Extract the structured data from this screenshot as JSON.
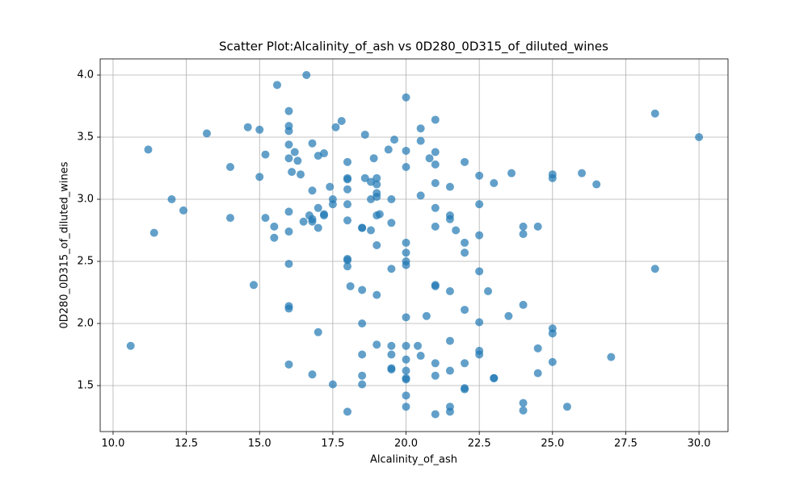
{
  "chart_data": {
    "type": "scatter",
    "title": "Scatter Plot:Alcalinity_of_ash vs 0D280_0D315_of_diluted_wines",
    "xlabel": "Alcalinity_of_ash",
    "ylabel": "0D280_0D315_of_diluted_wines",
    "color": "#1f77b4",
    "grid": true,
    "xlim": [
      9.56,
      30.99
    ],
    "ylim": [
      1.13,
      4.13
    ],
    "xticks": [
      {
        "value": 10,
        "label": "10.0"
      },
      {
        "value": 12.5,
        "label": "12.5"
      },
      {
        "value": 15,
        "label": "15.0"
      },
      {
        "value": 17.5,
        "label": "17.5"
      },
      {
        "value": 20,
        "label": "20.0"
      },
      {
        "value": 22.5,
        "label": "22.5"
      },
      {
        "value": 25,
        "label": "25.0"
      },
      {
        "value": 27.5,
        "label": "27.5"
      },
      {
        "value": 30,
        "label": "30.0"
      }
    ],
    "yticks": [
      {
        "value": 1.5,
        "label": "1.5"
      },
      {
        "value": 2,
        "label": "2.0"
      },
      {
        "value": 2.5,
        "label": "2.5"
      },
      {
        "value": 3,
        "label": "3.0"
      },
      {
        "value": 3.5,
        "label": "3.5"
      },
      {
        "value": 4,
        "label": "4.0"
      }
    ],
    "x": [
      15.6,
      16.6,
      20,
      16,
      28.5,
      21,
      17.8,
      16,
      14.6,
      17.6,
      20.5,
      15,
      16,
      13.2,
      18.6,
      30,
      19.6,
      20.5,
      16,
      16.8,
      11.2,
      19.4,
      16.2,
      20,
      21,
      17.2,
      15.2,
      17,
      20.8,
      16,
      18.9,
      16.3,
      18,
      22,
      21,
      14,
      20,
      16.1,
      23.6,
      26,
      16.4,
      25,
      15,
      22.5,
      18.6,
      18,
      19,
      25,
      18,
      18.8,
      21,
      23,
      19,
      26.5,
      17.4,
      21.5,
      18,
      16.8,
      19,
      20.5,
      19,
      12,
      17.5,
      18.8,
      19.5,
      18,
      17.5,
      22.5,
      17,
      21,
      12.4,
      16,
      17.2,
      19.1,
      17.2,
      16.7,
      19,
      21.5,
      14,
      15.2,
      21.5,
      16.8,
      18,
      16.5,
      16.8,
      19.5,
      15.5,
      17,
      18.5,
      18.5,
      21,
      24,
      24.5,
      16,
      11.4,
      18.8,
      21.7,
      22.5,
      24,
      15.5,
      20,
      22,
      19,
      20,
      22,
      18,
      18,
      20,
      20,
      16,
      18,
      19.5,
      28.5,
      22.5,
      21,
      21,
      14.8,
      18.1,
      18.5,
      21.5,
      22.8,
      19,
      24,
      16,
      16,
      22,
      20.7,
      23.5,
      20,
      22.5,
      18.5,
      25,
      17,
      25,
      21.5,
      10.6,
      19,
      19.5,
      20,
      20.4,
      24.5,
      22.5,
      18.5,
      19.5,
      22.5,
      20.5,
      27,
      20,
      25,
      16,
      21,
      22,
      19.5,
      19.5,
      20,
      21.5,
      24.5,
      16.8,
      18.5,
      21,
      20,
      20,
      23,
      23,
      17.5,
      18.5,
      22,
      22,
      20,
      24,
      20,
      21.5,
      25.5,
      24,
      18,
      21.5,
      21
    ],
    "values": [
      3.92,
      4.0,
      3.82,
      3.71,
      3.69,
      3.64,
      3.63,
      3.59,
      3.58,
      3.58,
      3.57,
      3.56,
      3.55,
      3.53,
      3.52,
      3.5,
      3.48,
      3.47,
      3.44,
      3.45,
      3.4,
      3.4,
      3.38,
      3.39,
      3.38,
      3.37,
      3.36,
      3.35,
      3.33,
      3.33,
      3.33,
      3.31,
      3.3,
      3.3,
      3.28,
      3.26,
      3.26,
      3.22,
      3.21,
      3.21,
      3.2,
      3.2,
      3.18,
      3.19,
      3.17,
      3.17,
      3.17,
      3.17,
      3.16,
      3.14,
      3.13,
      3.13,
      3.12,
      3.12,
      3.1,
      3.1,
      3.08,
      3.07,
      3.05,
      3.03,
      3.02,
      3.0,
      3.0,
      3.0,
      3.0,
      2.96,
      2.96,
      2.96,
      2.93,
      2.93,
      2.91,
      2.9,
      2.88,
      2.88,
      2.87,
      2.87,
      2.87,
      2.87,
      2.85,
      2.85,
      2.84,
      2.84,
      2.83,
      2.82,
      2.82,
      2.81,
      2.78,
      2.77,
      2.77,
      2.77,
      2.78,
      2.78,
      2.78,
      2.74,
      2.73,
      2.75,
      2.75,
      2.71,
      2.72,
      2.69,
      2.65,
      2.65,
      2.63,
      2.57,
      2.57,
      2.52,
      2.51,
      2.5,
      2.47,
      2.48,
      2.46,
      2.44,
      2.44,
      2.42,
      2.31,
      2.3,
      2.31,
      2.3,
      2.27,
      2.26,
      2.26,
      2.23,
      2.15,
      2.14,
      2.12,
      2.11,
      2.06,
      2.06,
      2.05,
      2.01,
      2.0,
      1.96,
      1.93,
      1.92,
      1.86,
      1.82,
      1.83,
      1.82,
      1.82,
      1.82,
      1.8,
      1.78,
      1.75,
      1.75,
      1.75,
      1.74,
      1.73,
      1.71,
      1.69,
      1.67,
      1.68,
      1.68,
      1.64,
      1.63,
      1.62,
      1.62,
      1.6,
      1.59,
      1.58,
      1.58,
      1.56,
      1.55,
      1.56,
      1.56,
      1.51,
      1.51,
      1.48,
      1.47,
      1.42,
      1.36,
      1.33,
      1.33,
      1.33,
      1.3,
      1.29,
      1.29,
      1.27
    ]
  }
}
